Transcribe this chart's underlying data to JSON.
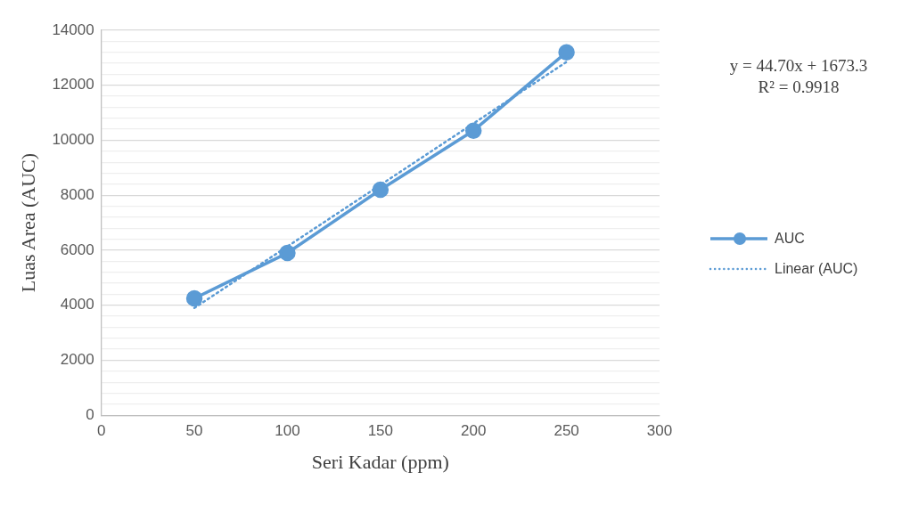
{
  "chart_data": {
    "type": "line",
    "xlabel": "Seri Kadar (ppm)",
    "ylabel": "Luas Area (AUC)",
    "x": [
      50,
      100,
      150,
      200,
      250
    ],
    "series": [
      {
        "name": "AUC",
        "color": "#5b9bd5",
        "values": [
          4250,
          5900,
          8200,
          10350,
          13200
        ],
        "marker": "circle",
        "line_style": "solid"
      },
      {
        "name": "Linear (AUC)",
        "color": "#5b9bd5",
        "x": [
          50,
          250
        ],
        "values": [
          3900,
          12850
        ],
        "marker": "none",
        "line_style": "dotted"
      }
    ],
    "xlim": [
      0,
      300
    ],
    "xticks": [
      0,
      50,
      100,
      150,
      200,
      250,
      300
    ],
    "ylim": [
      0,
      14000
    ],
    "yticks": [
      0,
      {
        "value": 400,
        "label": null
      },
      {
        "value": 800,
        "label": null
      },
      {
        "value": 1200,
        "label": null
      },
      {
        "value": 1600,
        "label": null
      },
      2000,
      {
        "value": 2400,
        "label": null
      },
      {
        "value": 2800,
        "label": null
      },
      {
        "value": 3200,
        "label": null
      },
      {
        "value": 3600,
        "label": null
      },
      4000,
      {
        "value": 4400,
        "label": null
      },
      {
        "value": 4800,
        "label": null
      },
      {
        "value": 5200,
        "label": null
      },
      {
        "value": 5600,
        "label": null
      },
      6000,
      {
        "value": 6400,
        "label": null
      },
      {
        "value": 6800,
        "label": null
      },
      {
        "value": 7200,
        "label": null
      },
      {
        "value": 7600,
        "label": null
      },
      8000,
      {
        "value": 8400,
        "label": null
      },
      {
        "value": 8800,
        "label": null
      },
      {
        "value": 9200,
        "label": null
      },
      {
        "value": 9600,
        "label": null
      },
      10000,
      {
        "value": 10400,
        "label": null
      },
      {
        "value": 10800,
        "label": null
      },
      {
        "value": 11200,
        "label": null
      },
      {
        "value": 11600,
        "label": null
      },
      12000,
      {
        "value": 12400,
        "label": null
      },
      {
        "value": 12800,
        "label": null
      },
      {
        "value": 13200,
        "label": null
      },
      {
        "value": 13600,
        "label": null
      },
      14000
    ],
    "annotations": [
      "y = 44.70x + 1673.3",
      "R² = 0.9918"
    ],
    "grid": "y",
    "legend": "right"
  }
}
